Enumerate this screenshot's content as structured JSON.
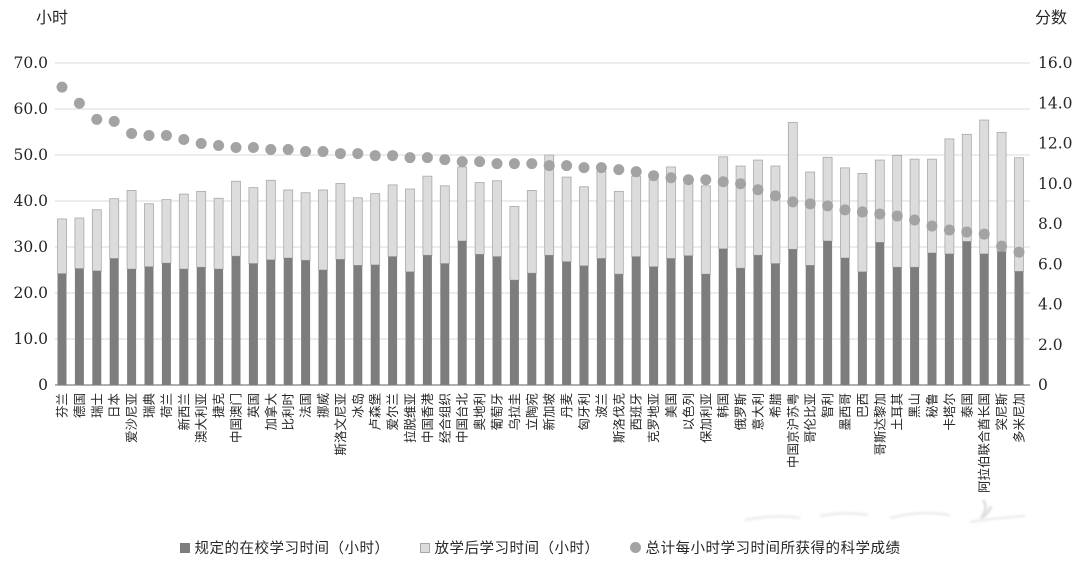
{
  "axes": {
    "left_title": "小时",
    "right_title": "分数",
    "left_ticks": [
      "70.0",
      "60.0",
      "50.0",
      "40.0",
      "30.0",
      "20.0",
      "10.0",
      "0"
    ],
    "right_ticks": [
      "16.0",
      "14.0",
      "12.0",
      "10.0",
      "8.0",
      "6.0",
      "4.0",
      "2.0",
      "0"
    ]
  },
  "legend": {
    "items": [
      {
        "marker": "dark-square",
        "label": "规定的在校学习时间（小时）"
      },
      {
        "marker": "light-square",
        "label": "放学后学习时间（小时）"
      },
      {
        "marker": "gray-dot",
        "label": "总计每小时学习时间所获得的科学成绩"
      }
    ]
  },
  "colors": {
    "bar_school": "#7d7d7d",
    "bar_after_fill": "#dcdcdc",
    "bar_after_stroke": "#a8a8a8",
    "dot": "#a3a3a3",
    "gridline": "#d9d9d9",
    "axis_line": "#808080",
    "text": "#262626"
  },
  "chart_data": {
    "type": "bar",
    "subtype": "stacked-bars-with-scatter-overlay",
    "categories": [
      "芬兰",
      "德国",
      "瑞士",
      "日本",
      "爱沙尼亚",
      "瑞典",
      "荷兰",
      "新西兰",
      "澳大利亚",
      "捷克",
      "中国澳门",
      "英国",
      "加拿大",
      "比利时",
      "法国",
      "挪威",
      "斯洛文尼亚",
      "冰岛",
      "卢森堡",
      "爱尔兰",
      "拉脱维亚",
      "中国香港",
      "经合组织",
      "中国台北",
      "奥地利",
      "葡萄牙",
      "乌拉圭",
      "立陶宛",
      "新加坡",
      "丹麦",
      "匈牙利",
      "波兰",
      "斯洛伐克",
      "西班牙",
      "克罗地亚",
      "美国",
      "以色列",
      "保加利亚",
      "韩国",
      "俄罗斯",
      "意大利",
      "希腊",
      "中国京沪苏粤",
      "哥伦比亚",
      "智利",
      "墨西哥",
      "巴西",
      "哥斯达黎加",
      "土耳其",
      "黑山",
      "秘鲁",
      "卡塔尔",
      "泰国",
      "阿拉伯联合酋长国",
      "突尼斯",
      "多米尼加"
    ],
    "series": [
      {
        "name": "规定的在校学习时间（小时）",
        "kind": "bar-stack-bottom",
        "axis": "left",
        "values": [
          24.2,
          25.3,
          24.8,
          27.5,
          25.2,
          25.7,
          26.5,
          25.2,
          25.6,
          25.2,
          28.0,
          26.4,
          27.2,
          27.6,
          27.1,
          25.0,
          27.3,
          26.0,
          26.1,
          27.9,
          24.6,
          28.2,
          26.4,
          31.3,
          28.4,
          27.9,
          22.8,
          24.3,
          28.2,
          26.8,
          25.9,
          27.5,
          24.1,
          27.9,
          25.7,
          27.5,
          28.1,
          24.1,
          29.6,
          25.4,
          28.2,
          26.4,
          29.5,
          26.0,
          31.3,
          27.6,
          24.6,
          31.0,
          25.6,
          25.6,
          28.7,
          28.5,
          31.2,
          28.5,
          29.0,
          24.7
        ]
      },
      {
        "name": "放学后学习时间（小时）",
        "kind": "bar-stack-top",
        "axis": "left",
        "values": [
          11.9,
          11.0,
          13.3,
          13.0,
          17.1,
          13.7,
          13.8,
          16.3,
          16.5,
          15.4,
          16.3,
          16.5,
          17.3,
          14.8,
          14.7,
          17.4,
          16.5,
          14.7,
          15.5,
          15.6,
          18.0,
          17.2,
          16.9,
          16.1,
          15.6,
          16.5,
          16.0,
          18.0,
          21.8,
          18.4,
          17.2,
          18.9,
          18.0,
          17.5,
          18.9,
          19.9,
          16.6,
          19.2,
          20.0,
          22.2,
          20.7,
          21.2,
          27.6,
          20.3,
          18.2,
          19.6,
          21.4,
          17.9,
          24.3,
          23.5,
          20.4,
          25.0,
          23.3,
          29.1,
          25.9,
          24.7
        ]
      },
      {
        "name": "总计每小时学习时间所获得的科学成绩",
        "kind": "scatter",
        "axis": "right",
        "values": [
          14.8,
          14.0,
          13.2,
          13.1,
          12.5,
          12.4,
          12.4,
          12.2,
          12.0,
          11.9,
          11.8,
          11.8,
          11.7,
          11.7,
          11.6,
          11.6,
          11.5,
          11.5,
          11.4,
          11.4,
          11.3,
          11.3,
          11.2,
          11.1,
          11.1,
          11.0,
          11.0,
          11.0,
          10.9,
          10.9,
          10.8,
          10.8,
          10.7,
          10.6,
          10.4,
          10.3,
          10.2,
          10.2,
          10.1,
          10.0,
          9.7,
          9.4,
          9.1,
          9.0,
          8.9,
          8.7,
          8.6,
          8.5,
          8.4,
          8.2,
          7.9,
          7.7,
          7.6,
          7.5,
          6.9,
          6.6
        ]
      }
    ],
    "left_axis": {
      "title": "小时",
      "range": [
        0,
        70
      ],
      "tick_step": 10
    },
    "right_axis": {
      "title": "分数",
      "range": [
        0,
        16
      ],
      "tick_step": 2
    },
    "grid": true,
    "legend_position": "bottom"
  }
}
